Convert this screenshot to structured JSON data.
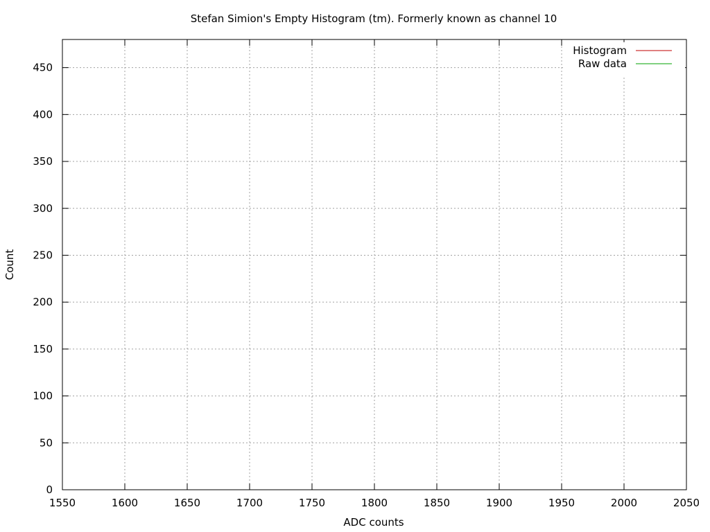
{
  "chart_data": {
    "type": "line",
    "title": "Stefan Simion's Empty Histogram (tm). Formerly known as channel 10",
    "xlabel": "ADC counts",
    "ylabel": "Count",
    "xlim": [
      1550,
      2050
    ],
    "ylim": [
      0,
      480
    ],
    "xticks": [
      1550,
      1600,
      1650,
      1700,
      1750,
      1800,
      1850,
      1900,
      1950,
      2000,
      2050
    ],
    "yticks": [
      0,
      50,
      100,
      150,
      200,
      250,
      300,
      350,
      400,
      450
    ],
    "grid": true,
    "legend_position": "top-right",
    "series": [
      {
        "name": "Histogram",
        "color": "#c00000",
        "points": []
      },
      {
        "name": "Raw data",
        "color": "#00a000",
        "points": []
      }
    ]
  }
}
